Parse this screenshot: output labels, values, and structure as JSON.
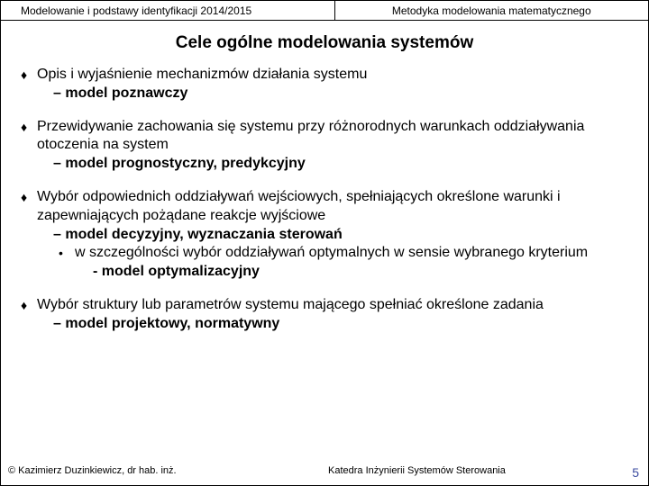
{
  "header": {
    "left": "Modelowanie i podstawy identyfikacji 2014/2015",
    "right": "Metodyka modelowania matematycznego"
  },
  "title": "Cele ogólne modelowania systemów",
  "items": [
    {
      "main": "Opis i wyjaśnienie mechanizmów działania systemu",
      "sub1": "model poznawczy"
    },
    {
      "main": "Przewidywanie zachowania się systemu przy różnorodnych warunkach oddziaływania otoczenia na system",
      "sub1": "model prognostyczny, predykcyjny"
    },
    {
      "main": "Wybór odpowiednich oddziaływań wejściowych, spełniających określone warunki i zapewniających pożądane reakcje wyjściowe",
      "sub1": "model decyzyjny, wyznaczania sterowań",
      "sub2": "w szczególności wybór oddziaływań optymalnych w sensie wybranego kryterium",
      "sub3": "model optymalizacyjny"
    },
    {
      "main": "Wybór struktury lub parametrów systemu mającego spełniać określone zadania",
      "sub1": "model projektowy, normatywny"
    }
  ],
  "footer": {
    "left": "© Kazimierz Duzinkiewicz, dr hab. inż.",
    "mid": "Katedra Inżynierii Systemów Sterowania",
    "page": "5"
  },
  "colors": {
    "text": "#000000",
    "pagenum": "#3b4ba0",
    "bg": "#ffffff",
    "border": "#000000"
  }
}
